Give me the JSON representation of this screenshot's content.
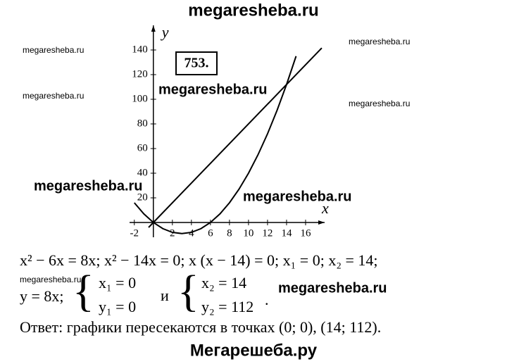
{
  "header": "megaresheba.ru",
  "problem_number": "753.",
  "watermarks": [
    "megaresheba.ru",
    "megaresheba.ru",
    "megaresheba.ru",
    "megaresheba.ru",
    "megaresheba.ru",
    "megaresheba.ru",
    "megaresheba.ru",
    "megaresheba.ru",
    "megaresheba.ru"
  ],
  "chart_data": {
    "type": "line",
    "x_label": "x",
    "y_label": "y",
    "xlim": [
      -2.5,
      18
    ],
    "ylim": [
      -12,
      160
    ],
    "xticks": [
      -2,
      2,
      4,
      6,
      8,
      10,
      12,
      14,
      16
    ],
    "yticks": [
      20,
      40,
      60,
      80,
      100,
      120,
      140
    ],
    "grid": false,
    "series": [
      {
        "color": "#000000",
        "x": [
          -0.5,
          17.7
        ],
        "values": [
          -4,
          141.6
        ]
      },
      {
        "color": "#000000",
        "x": [
          -2,
          -1,
          0,
          1,
          2,
          3,
          4,
          5,
          6,
          7,
          8,
          9,
          10,
          11,
          12,
          13,
          14,
          15
        ],
        "values": [
          16,
          7,
          0,
          -5,
          -8,
          -9,
          -8,
          -5,
          0,
          7,
          16,
          27,
          40,
          55,
          72,
          91,
          112,
          135
        ]
      }
    ]
  },
  "solution": {
    "line1": "x² − 6x = 8x;  x² − 14x = 0;  x (x − 14) = 0;  x₁ = 0;  x₂ = 14;",
    "y_eq": "y = 8x;",
    "sys1": [
      "x₁ = 0",
      "y₁ = 0"
    ],
    "and": "и",
    "sys2": [
      "x₂ = 14",
      "y₂ = 112"
    ],
    "dot": ".",
    "answer": "Ответ: графики пересекаются в точках (0; 0), (14; 112)."
  },
  "footer": "Мегарешеба.ру"
}
